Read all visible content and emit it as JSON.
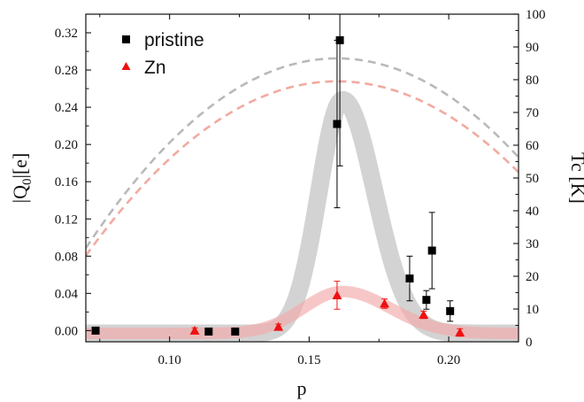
{
  "chart_data": {
    "type": "scatter",
    "xlabel": "p",
    "ylabel_left": "|Q",
    "ylabel_left_sub": "0",
    "ylabel_left_suffix": "|[e]",
    "ylabel_right": "Tc [K]",
    "xlim": [
      0.07,
      0.225
    ],
    "ylim_left": [
      -0.012,
      0.34
    ],
    "ylim_right": [
      0,
      100
    ],
    "x_ticks": [
      0.1,
      0.15,
      0.2
    ],
    "x_tick_labels": [
      "0.10",
      "0.15",
      "0.20"
    ],
    "y_left_ticks": [
      0.0,
      0.04,
      0.08,
      0.12,
      0.16,
      0.2,
      0.24,
      0.28,
      0.32
    ],
    "y_left_tick_labels": [
      "0.00",
      "0.04",
      "0.08",
      "0.12",
      "0.16",
      "0.20",
      "0.24",
      "0.28",
      "0.32"
    ],
    "y_right_ticks": [
      0,
      10,
      20,
      30,
      40,
      50,
      60,
      70,
      80,
      90,
      100
    ],
    "y_right_tick_labels": [
      "0",
      "10",
      "20",
      "30",
      "40",
      "50",
      "60",
      "70",
      "80",
      "90",
      "100"
    ],
    "grid": false,
    "legend_position": "top-left",
    "series": [
      {
        "name": "pristine",
        "marker": "square",
        "color": "#000000",
        "points": [
          {
            "x": 0.0735,
            "y": 0.0,
            "err": 0
          },
          {
            "x": 0.114,
            "y": -0.001,
            "err": 0
          },
          {
            "x": 0.1235,
            "y": -0.001,
            "err": 0
          },
          {
            "x": 0.16,
            "y": 0.222,
            "err": 0.09
          },
          {
            "x": 0.161,
            "y": 0.312,
            "err": 0.135
          },
          {
            "x": 0.186,
            "y": 0.056,
            "err": 0.024
          },
          {
            "x": 0.192,
            "y": 0.033,
            "err": 0.01
          },
          {
            "x": 0.194,
            "y": 0.086,
            "err": 0.041
          },
          {
            "x": 0.2005,
            "y": 0.021,
            "err": 0.011
          }
        ]
      },
      {
        "name": "Zn",
        "marker": "triangle",
        "color": "#ee1111",
        "points": [
          {
            "x": 0.109,
            "y": 0.0,
            "err": 0.003
          },
          {
            "x": 0.139,
            "y": 0.004,
            "err": 0.003
          },
          {
            "x": 0.16,
            "y": 0.038,
            "err": 0.015
          },
          {
            "x": 0.177,
            "y": 0.029,
            "err": 0.005
          },
          {
            "x": 0.191,
            "y": 0.017,
            "err": 0.004
          },
          {
            "x": 0.204,
            "y": -0.002,
            "err": 0.004
          }
        ]
      }
    ],
    "guide_curves": [
      {
        "name": "pristine-guide",
        "color": "#c8c8c8",
        "opacity": 0.8,
        "width": 20,
        "baseline": -0.003,
        "peak_x": 0.162,
        "peak_y": 0.248,
        "sigma_left": 0.0085,
        "sigma_right": 0.0115
      },
      {
        "name": "zn-guide",
        "color": "#f3a9a9",
        "opacity": 0.65,
        "width": 13,
        "baseline": -0.003,
        "peak_x": 0.162,
        "peak_y": 0.042,
        "sigma_left": 0.014,
        "sigma_right": 0.017
      }
    ],
    "tc_domes": [
      {
        "name": "pristine-tc-dome",
        "color": "#b9b9b9",
        "tc_max": 86.5,
        "p_min": 0.05,
        "p_max": 0.27
      },
      {
        "name": "zn-tc-dome",
        "color": "#f2aaa0",
        "tc_max": 79.5,
        "p_min": 0.05,
        "p_max": 0.27
      }
    ]
  }
}
